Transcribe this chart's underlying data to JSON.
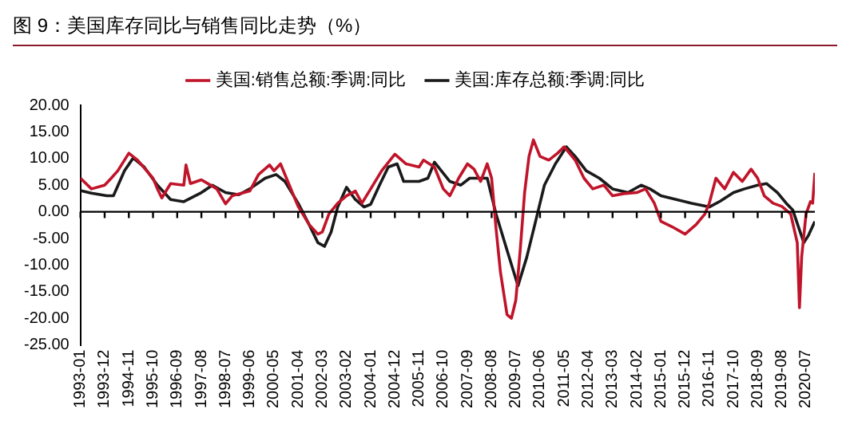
{
  "chart_data": {
    "type": "line",
    "title": "图 9：美国库存同比与销售同比走势（%）",
    "legend": "top",
    "grid": false,
    "marker": "none",
    "line_style": "solid",
    "xlim": [
      "1993-01",
      "2020-11"
    ],
    "xticks": [
      "1993-01",
      "1993-12",
      "1994-11",
      "1995-10",
      "1996-09",
      "1997-08",
      "1998-07",
      "1999-06",
      "2000-05",
      "2001-04",
      "2002-03",
      "2003-02",
      "2004-01",
      "2004-12",
      "2005-11",
      "2006-10",
      "2007-09",
      "2008-08",
      "2009-07",
      "2010-06",
      "2011-05",
      "2012-04",
      "2013-03",
      "2014-02",
      "2015-01",
      "2015-12",
      "2016-11",
      "2017-10",
      "2018-09",
      "2019-08",
      "2020-07"
    ],
    "ylim": [
      -25,
      20
    ],
    "yticks": [
      {
        "value": 20,
        "label": "20.00"
      },
      {
        "value": 15,
        "label": "15.00"
      },
      {
        "value": 10,
        "label": "10.00"
      },
      {
        "value": 5,
        "label": "5.00"
      },
      {
        "value": 0,
        "label": "0.00"
      },
      {
        "value": -5,
        "label": "-5.00"
      },
      {
        "value": -10,
        "label": "-10.00"
      },
      {
        "value": -15,
        "label": "-15.00"
      },
      {
        "value": -20,
        "label": "-20.00"
      },
      {
        "value": -25,
        "label": "-25.00"
      }
    ],
    "ref_lines": [
      {
        "axis": "y",
        "value": 0,
        "color": "#000000"
      }
    ],
    "series": [
      {
        "name": "美国:销售总额:季调:同比",
        "color": "#c0142a",
        "x": [
          "1993-01",
          "1993-06",
          "1993-12",
          "1994-03",
          "1994-06",
          "1994-11",
          "1995-03",
          "1995-10",
          "1995-12",
          "1996-02",
          "1996-06",
          "1996-12",
          "1997-01",
          "1997-03",
          "1997-08",
          "1998-03",
          "1998-07",
          "1998-10",
          "1999-06",
          "1999-10",
          "2000-03",
          "2000-05",
          "2000-08",
          "2000-12",
          "2001-04",
          "2001-09",
          "2002-01",
          "2002-03",
          "2002-06",
          "2002-10",
          "2003-02",
          "2003-06",
          "2003-09",
          "2004-01",
          "2004-06",
          "2004-12",
          "2005-05",
          "2005-11",
          "2006-01",
          "2006-06",
          "2006-10",
          "2007-01",
          "2007-05",
          "2007-09",
          "2007-12",
          "2008-03",
          "2008-06",
          "2008-08",
          "2008-10",
          "2008-12",
          "2009-03",
          "2009-05",
          "2009-07",
          "2009-09",
          "2009-11",
          "2010-01",
          "2010-03",
          "2010-06",
          "2010-10",
          "2011-02",
          "2011-05",
          "2011-10",
          "2012-02",
          "2012-06",
          "2012-11",
          "2013-03",
          "2013-08",
          "2014-02",
          "2014-06",
          "2014-10",
          "2015-01",
          "2015-06",
          "2015-12",
          "2016-05",
          "2016-09",
          "2016-11",
          "2017-02",
          "2017-06",
          "2017-10",
          "2018-02",
          "2018-06",
          "2018-09",
          "2018-12",
          "2019-04",
          "2019-08",
          "2019-12",
          "2020-03",
          "2020-04",
          "2020-05",
          "2020-07",
          "2020-09",
          "2020-10",
          "2020-11"
        ],
        "values": [
          6.3,
          4.3,
          5,
          6.3,
          7.7,
          11,
          9.7,
          6.3,
          4.3,
          2.6,
          5.3,
          5,
          8.8,
          5.3,
          6,
          4.3,
          1.5,
          3,
          3.9,
          7,
          8.8,
          7.7,
          9,
          5,
          1,
          -2.4,
          -4.2,
          -3.8,
          -0.4,
          1.6,
          3,
          3.9,
          1.6,
          4.3,
          7.7,
          10.8,
          9,
          8.4,
          9.7,
          8.4,
          4.3,
          3,
          6.3,
          9,
          8,
          5.7,
          9,
          6.3,
          -3.1,
          -11.3,
          -19.3,
          -20,
          -16.6,
          -7.2,
          3.6,
          10.4,
          13.5,
          10.4,
          9.7,
          11,
          12.2,
          9.7,
          6.3,
          4.3,
          5,
          3,
          3.4,
          3.6,
          4.3,
          1.6,
          -1.8,
          -2.8,
          -4.2,
          -2.4,
          -0.4,
          1.6,
          6.3,
          4.3,
          7.4,
          5.7,
          8,
          6.3,
          3,
          1.6,
          1,
          -0.4,
          -5.8,
          -18,
          -8.5,
          -0.4,
          1.9,
          1.6,
          7.3
        ]
      },
      {
        "name": "美国:库存总额:季调:同比",
        "color": "#1a1a1a",
        "x": [
          "1993-01",
          "1993-06",
          "1994-01",
          "1994-04",
          "1994-09",
          "1995-01",
          "1995-06",
          "1995-12",
          "1996-06",
          "1996-12",
          "1997-08",
          "1998-01",
          "1998-07",
          "1999-01",
          "1999-06",
          "2000-01",
          "2000-06",
          "2000-10",
          "2001-04",
          "2001-09",
          "2002-01",
          "2002-04",
          "2002-07",
          "2002-10",
          "2003-02",
          "2003-06",
          "2003-10",
          "2004-01",
          "2004-05",
          "2004-09",
          "2005-01",
          "2005-04",
          "2005-11",
          "2006-03",
          "2006-06",
          "2007-01",
          "2007-06",
          "2007-10",
          "2008-03",
          "2008-06",
          "2008-10",
          "2009-03",
          "2009-08",
          "2009-12",
          "2010-04",
          "2010-08",
          "2011-01",
          "2011-06",
          "2011-10",
          "2012-03",
          "2012-09",
          "2013-03",
          "2013-10",
          "2014-04",
          "2014-08",
          "2015-01",
          "2015-08",
          "2016-03",
          "2016-11",
          "2017-04",
          "2017-10",
          "2018-03",
          "2018-09",
          "2019-01",
          "2019-06",
          "2019-10",
          "2020-01",
          "2020-04",
          "2020-06",
          "2020-08",
          "2020-11"
        ],
        "values": [
          4,
          3.5,
          3,
          3,
          7.7,
          10.1,
          8.4,
          5,
          2.3,
          1.9,
          3.6,
          5,
          3.6,
          3.2,
          4.3,
          6.3,
          7,
          5.7,
          1.6,
          -2.4,
          -5.8,
          -6.5,
          -3.8,
          0.9,
          4.6,
          2.3,
          0.9,
          1.4,
          5,
          8.4,
          9,
          5.7,
          5.7,
          6.3,
          9.3,
          5.7,
          5,
          6.3,
          6.3,
          6.3,
          -0.4,
          -7.2,
          -13.9,
          -8.5,
          -1.8,
          5,
          9,
          12.2,
          10.4,
          7.7,
          6.3,
          4.3,
          3.6,
          5,
          4.3,
          3,
          2.3,
          1.6,
          0.9,
          2,
          3.6,
          4.3,
          5,
          5.3,
          3.6,
          1.6,
          0.3,
          -3.4,
          -5.8,
          -4.5,
          -1.8
        ]
      }
    ]
  }
}
